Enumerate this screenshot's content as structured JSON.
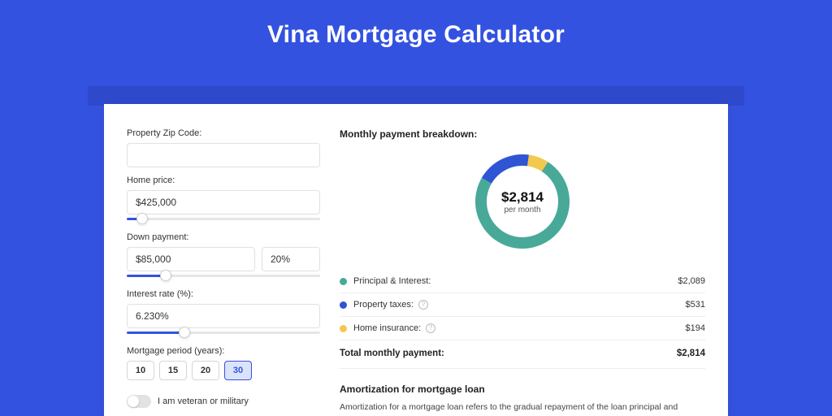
{
  "page": {
    "title": "Vina Mortgage Calculator",
    "bg_color": "#3452e0",
    "band_color": "#2e49cc",
    "card_bg": "#ffffff"
  },
  "form": {
    "zip": {
      "label": "Property Zip Code:",
      "value": ""
    },
    "home_price": {
      "label": "Home price:",
      "value": "$425,000",
      "slider_pct": 8
    },
    "down_payment": {
      "label": "Down payment:",
      "value": "$85,000",
      "pct_value": "20%",
      "slider_pct": 20
    },
    "interest_rate": {
      "label": "Interest rate (%):",
      "value": "6.230%",
      "slider_pct": 30
    },
    "period": {
      "label": "Mortgage period (years):",
      "options": [
        "10",
        "15",
        "20",
        "30"
      ],
      "selected": "30"
    },
    "veteran": {
      "label": "I am veteran or military",
      "on": false
    }
  },
  "breakdown": {
    "title": "Monthly payment breakdown:",
    "center_amount": "$2,814",
    "center_sub": "per month",
    "donut": {
      "slices": [
        {
          "key": "principal_interest",
          "value": 2089,
          "color": "#48a999"
        },
        {
          "key": "property_taxes",
          "value": 531,
          "color": "#2f55d4"
        },
        {
          "key": "home_insurance",
          "value": 194,
          "color": "#f2c94c"
        }
      ],
      "ring_width": 14,
      "bg": "#ffffff"
    },
    "rows": [
      {
        "dot": "#48a999",
        "label": "Principal & Interest:",
        "info": false,
        "value": "$2,089"
      },
      {
        "dot": "#2f55d4",
        "label": "Property taxes:",
        "info": true,
        "value": "$531"
      },
      {
        "dot": "#f2c94c",
        "label": "Home insurance:",
        "info": true,
        "value": "$194"
      }
    ],
    "total": {
      "label": "Total monthly payment:",
      "value": "$2,814"
    }
  },
  "amortization": {
    "title": "Amortization for mortgage loan",
    "body": "Amortization for a mortgage loan refers to the gradual repayment of the loan principal and interest over a specified"
  }
}
